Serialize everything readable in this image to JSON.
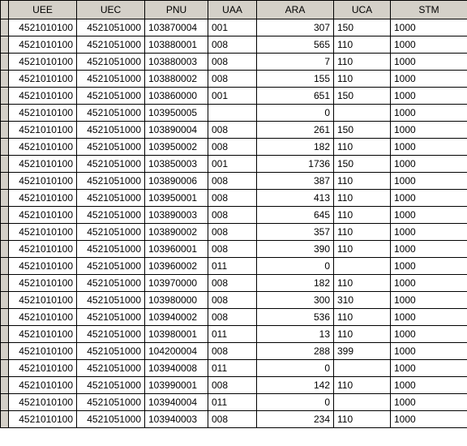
{
  "table": {
    "columns": [
      "UEE",
      "UEC",
      "PNU",
      "UAA",
      "ARA",
      "UCA",
      "STM"
    ],
    "col_align": [
      "right",
      "right",
      "left",
      "left",
      "right",
      "left",
      "left"
    ],
    "header_bg": "#d4d0c8",
    "rowhdr_bg": "#d4d0c8",
    "border_color": "#000000",
    "background_color": "#ffffff",
    "text_color": "#000000",
    "font_size": 12,
    "rows": [
      [
        "4521010100",
        "4521051000",
        "103870004",
        "001",
        "307",
        "150",
        "1000"
      ],
      [
        "4521010100",
        "4521051000",
        "103880001",
        "008",
        "565",
        "110",
        "1000"
      ],
      [
        "4521010100",
        "4521051000",
        "103880003",
        "008",
        "7",
        "110",
        "1000"
      ],
      [
        "4521010100",
        "4521051000",
        "103880002",
        "008",
        "155",
        "110",
        "1000"
      ],
      [
        "4521010100",
        "4521051000",
        "103860000",
        "001",
        "651",
        "150",
        "1000"
      ],
      [
        "4521010100",
        "4521051000",
        "103950005",
        "",
        "0",
        "",
        "1000"
      ],
      [
        "4521010100",
        "4521051000",
        "103890004",
        "008",
        "261",
        "150",
        "1000"
      ],
      [
        "4521010100",
        "4521051000",
        "103950002",
        "008",
        "182",
        "110",
        "1000"
      ],
      [
        "4521010100",
        "4521051000",
        "103850003",
        "001",
        "1736",
        "150",
        "1000"
      ],
      [
        "4521010100",
        "4521051000",
        "103890006",
        "008",
        "387",
        "110",
        "1000"
      ],
      [
        "4521010100",
        "4521051000",
        "103950001",
        "008",
        "413",
        "110",
        "1000"
      ],
      [
        "4521010100",
        "4521051000",
        "103890003",
        "008",
        "645",
        "110",
        "1000"
      ],
      [
        "4521010100",
        "4521051000",
        "103890002",
        "008",
        "357",
        "110",
        "1000"
      ],
      [
        "4521010100",
        "4521051000",
        "103960001",
        "008",
        "390",
        "110",
        "1000"
      ],
      [
        "4521010100",
        "4521051000",
        "103960002",
        "011",
        "0",
        "",
        "1000"
      ],
      [
        "4521010100",
        "4521051000",
        "103970000",
        "008",
        "182",
        "110",
        "1000"
      ],
      [
        "4521010100",
        "4521051000",
        "103980000",
        "008",
        "300",
        "310",
        "1000"
      ],
      [
        "4521010100",
        "4521051000",
        "103940002",
        "008",
        "536",
        "110",
        "1000"
      ],
      [
        "4521010100",
        "4521051000",
        "103980001",
        "011",
        "13",
        "110",
        "1000"
      ],
      [
        "4521010100",
        "4521051000",
        "104200004",
        "008",
        "288",
        "399",
        "1000"
      ],
      [
        "4521010100",
        "4521051000",
        "103940008",
        "011",
        "0",
        "",
        "1000"
      ],
      [
        "4521010100",
        "4521051000",
        "103990001",
        "008",
        "142",
        "110",
        "1000"
      ],
      [
        "4521010100",
        "4521051000",
        "103940004",
        "011",
        "0",
        "",
        "1000"
      ],
      [
        "4521010100",
        "4521051000",
        "103940003",
        "008",
        "234",
        "110",
        "1000"
      ]
    ]
  }
}
